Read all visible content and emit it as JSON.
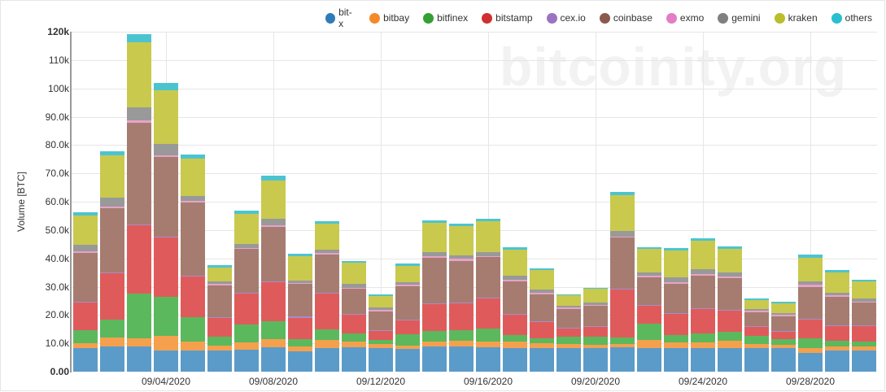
{
  "watermark": "bitcoinity.org",
  "legend": [
    {
      "name": "bit-x",
      "color": "#1f77b4"
    },
    {
      "name": "bitbay",
      "color": "#ff7f0e"
    },
    {
      "name": "bitfinex",
      "color": "#2ca02c"
    },
    {
      "name": "bitstamp",
      "color": "#d62728"
    },
    {
      "name": "cex.io",
      "color": "#9467bd"
    },
    {
      "name": "coinbase",
      "color": "#8c564b"
    },
    {
      "name": "exmo",
      "color": "#e377c2"
    },
    {
      "name": "gemini",
      "color": "#7f7f7f"
    },
    {
      "name": "kraken",
      "color": "#bcbd22"
    },
    {
      "name": "others",
      "color": "#17becf"
    }
  ],
  "yaxis": {
    "label": "Volume [BTC]",
    "ticks": [
      "0.00",
      "10.0k",
      "20.0k",
      "30.0k",
      "40.0k",
      "50.0k",
      "60.0k",
      "70.0k",
      "80.0k",
      "90.0k",
      "100k",
      "110k",
      "120k"
    ]
  },
  "xaxis": {
    "ticks": [
      {
        "label": "09/04/2020",
        "index": 3
      },
      {
        "label": "09/08/2020",
        "index": 7
      },
      {
        "label": "09/12/2020",
        "index": 11
      },
      {
        "label": "09/16/2020",
        "index": 15
      },
      {
        "label": "09/20/2020",
        "index": 19
      },
      {
        "label": "09/24/2020",
        "index": 23
      },
      {
        "label": "09/28/2020",
        "index": 27
      }
    ]
  },
  "chart_data": {
    "type": "bar",
    "stacked": true,
    "title": "",
    "xlabel": "",
    "ylabel": "Volume [BTC]",
    "ylim": [
      0,
      120000
    ],
    "grid": true,
    "legend_position": "top-right",
    "categories": [
      "09/01/2020",
      "09/02/2020",
      "09/03/2020",
      "09/04/2020",
      "09/05/2020",
      "09/06/2020",
      "09/07/2020",
      "09/08/2020",
      "09/09/2020",
      "09/10/2020",
      "09/11/2020",
      "09/12/2020",
      "09/13/2020",
      "09/14/2020",
      "09/15/2020",
      "09/16/2020",
      "09/17/2020",
      "09/18/2020",
      "09/19/2020",
      "09/20/2020",
      "09/21/2020",
      "09/22/2020",
      "09/23/2020",
      "09/24/2020",
      "09/25/2020",
      "09/26/2020",
      "09/27/2020",
      "09/28/2020",
      "09/29/2020",
      "09/30/2020"
    ],
    "series": [
      {
        "name": "bit-x",
        "values": [
          8300,
          8900,
          8900,
          7600,
          7500,
          7500,
          7700,
          8500,
          7200,
          8300,
          8600,
          8200,
          8000,
          9000,
          8800,
          8700,
          8300,
          8400,
          8200,
          8300,
          8500,
          8400,
          8400,
          8300,
          8400,
          8400,
          8300,
          6700,
          7400,
          7400
        ]
      },
      {
        "name": "bitbay",
        "values": [
          1700,
          3300,
          2800,
          5100,
          3200,
          1800,
          2700,
          3100,
          1700,
          2900,
          1900,
          1500,
          1200,
          1700,
          2000,
          2000,
          2300,
          1700,
          1600,
          1300,
          1300,
          2900,
          1800,
          2100,
          2500,
          1400,
          1100,
          1600,
          1600,
          1600
        ]
      },
      {
        "name": "bitfinex",
        "values": [
          4600,
          6300,
          16000,
          13700,
          8500,
          3000,
          6300,
          6200,
          2600,
          3800,
          2900,
          1500,
          4000,
          3700,
          3900,
          4600,
          2200,
          1800,
          2600,
          2700,
          2300,
          5700,
          2600,
          3000,
          3200,
          2700,
          2100,
          3600,
          1900,
          1600
        ]
      },
      {
        "name": "bitstamp",
        "values": [
          9800,
          16200,
          24000,
          21000,
          14500,
          6700,
          11000,
          13700,
          7600,
          12500,
          6800,
          3200,
          4800,
          9500,
          9400,
          10600,
          7200,
          5700,
          2900,
          3600,
          17000,
          6400,
          7600,
          8700,
          7300,
          3400,
          2700,
          6400,
          5200,
          5500
        ]
      },
      {
        "name": "cex.io",
        "values": [
          300,
          300,
          300,
          300,
          300,
          300,
          300,
          300,
          300,
          300,
          300,
          300,
          300,
          300,
          300,
          300,
          300,
          300,
          300,
          300,
          300,
          300,
          300,
          300,
          300,
          300,
          300,
          300,
          300,
          300
        ]
      },
      {
        "name": "coinbase",
        "values": [
          17300,
          22800,
          36000,
          28000,
          25700,
          11200,
          15300,
          19200,
          11500,
          13600,
          8700,
          6500,
          11900,
          16100,
          14800,
          14200,
          11700,
          9500,
          6500,
          7000,
          17900,
          9600,
          10300,
          11600,
          11300,
          4800,
          5000,
          11400,
          10000,
          7900
        ]
      },
      {
        "name": "exmo",
        "values": [
          500,
          600,
          600,
          600,
          500,
          500,
          500,
          600,
          500,
          500,
          500,
          500,
          500,
          600,
          600,
          500,
          500,
          500,
          500,
          500,
          500,
          500,
          500,
          500,
          500,
          500,
          500,
          600,
          500,
          500
        ]
      },
      {
        "name": "gemini",
        "values": [
          2200,
          3000,
          4700,
          4200,
          1800,
          900,
          1400,
          2400,
          900,
          1200,
          1200,
          1000,
          1000,
          1400,
          1300,
          1200,
          1400,
          1100,
          700,
          600,
          1800,
          1300,
          1700,
          1600,
          1400,
          600,
          600,
          1300,
          1000,
          1200
        ]
      },
      {
        "name": "kraken",
        "values": [
          10400,
          15000,
          23000,
          18800,
          13100,
          4800,
          10400,
          13600,
          8600,
          9100,
          7500,
          4100,
          5700,
          10300,
          10400,
          11100,
          9200,
          6900,
          3600,
          4900,
          12700,
          8200,
          9600,
          10000,
          8500,
          3300,
          3500,
          8400,
          7100,
          5800
        ]
      },
      {
        "name": "others",
        "values": [
          1100,
          1400,
          2900,
          2600,
          1500,
          800,
          1200,
          1500,
          800,
          900,
          700,
          600,
          800,
          900,
          800,
          900,
          800,
          700,
          500,
          500,
          1100,
          700,
          800,
          900,
          800,
          500,
          500,
          1000,
          800,
          700
        ]
      }
    ]
  }
}
